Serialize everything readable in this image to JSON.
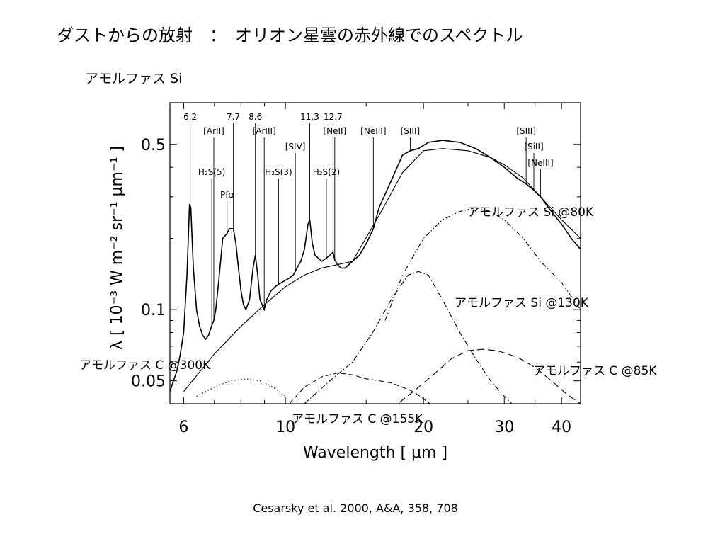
{
  "slide": {
    "title": "ダストからの放射　：　オリオン星雲の赤外線でのスペクトル",
    "subtitle": "アモルファス Si",
    "citation": "Cesarsky et al. 2000, A&A, 358, 708"
  },
  "chart_data": {
    "type": "line",
    "xlabel": "Wavelength [ μm ]",
    "ylabel": "λ [ 10⁻³ W m⁻² sr⁻¹ μm⁻¹ ]",
    "xscale": "log",
    "yscale": "log",
    "xlim": [
      5.6,
      44
    ],
    "ylim": [
      0.04,
      0.75
    ],
    "x_ticks": [
      {
        "value": 6,
        "label": "6"
      },
      {
        "value": 10,
        "label": "10"
      },
      {
        "value": 20,
        "label": "20"
      },
      {
        "value": 30,
        "label": "30"
      },
      {
        "value": 40,
        "label": "40"
      }
    ],
    "y_ticks": [
      {
        "value": 0.05,
        "label": "0.05"
      },
      {
        "value": 0.1,
        "label": "0.1"
      },
      {
        "value": 0.5,
        "label": "0.5"
      }
    ],
    "grid": false,
    "line_labels": [
      {
        "text": "6.2",
        "x": 6.2,
        "row": 0
      },
      {
        "text": "7.7",
        "x": 7.7,
        "row": 0
      },
      {
        "text": "8.6",
        "x": 8.6,
        "row": 0
      },
      {
        "text": "11.3",
        "x": 11.3,
        "row": 0
      },
      {
        "text": "12.7",
        "x": 12.7,
        "row": 0
      },
      {
        "text": "[ArII]",
        "x": 6.98,
        "row": 1
      },
      {
        "text": "[ArIII]",
        "x": 8.99,
        "row": 1
      },
      {
        "text": "[NeII]",
        "x": 12.81,
        "row": 1
      },
      {
        "text": "[NeIII]",
        "x": 15.55,
        "row": 1
      },
      {
        "text": "[SIII]",
        "x": 18.71,
        "row": 1
      },
      {
        "text": "[SIII]",
        "x": 33.48,
        "row": 1
      },
      {
        "text": "[SIV]",
        "x": 10.51,
        "row": 2
      },
      {
        "text": "[SiII]",
        "x": 34.8,
        "row": 2
      },
      {
        "text": "[NeIII]",
        "x": 36.0,
        "row": 3
      },
      {
        "text": "H₂S(5)",
        "x": 6.91,
        "row": 4
      },
      {
        "text": "H₂S(3)",
        "x": 9.66,
        "row": 4
      },
      {
        "text": "H₂S(2)",
        "x": 12.28,
        "row": 4
      },
      {
        "text": "Pfα",
        "x": 7.46,
        "row": 5
      }
    ],
    "series": [
      {
        "style": "observed",
        "x": [
          5.6,
          5.7,
          5.8,
          5.9,
          6.0,
          6.1,
          6.18,
          6.22,
          6.3,
          6.4,
          6.5,
          6.6,
          6.7,
          6.8,
          6.9,
          6.98,
          7.05,
          7.15,
          7.3,
          7.46,
          7.55,
          7.7,
          7.8,
          7.9,
          8.0,
          8.1,
          8.2,
          8.35,
          8.5,
          8.6,
          8.7,
          8.8,
          8.99,
          9.1,
          9.3,
          9.5,
          9.66,
          9.8,
          10.0,
          10.2,
          10.4,
          10.51,
          10.6,
          10.8,
          11.0,
          11.2,
          11.3,
          11.45,
          11.6,
          11.8,
          12.0,
          12.28,
          12.5,
          12.7,
          12.81,
          13.0,
          13.2,
          13.5,
          14.0,
          14.5,
          15.0,
          15.55,
          16.0,
          17.0,
          18.0,
          18.71,
          19.5,
          20.5,
          22.0,
          24.0,
          26.0,
          28.0,
          30.0,
          32.0,
          33.48,
          34.8,
          36.0,
          38.0,
          40.0,
          42.0,
          44.0
        ],
        "values": [
          0.045,
          0.05,
          0.055,
          0.065,
          0.08,
          0.14,
          0.28,
          0.27,
          0.15,
          0.1,
          0.085,
          0.078,
          0.075,
          0.078,
          0.085,
          0.09,
          0.1,
          0.13,
          0.2,
          0.21,
          0.22,
          0.22,
          0.19,
          0.15,
          0.12,
          0.105,
          0.1,
          0.11,
          0.15,
          0.17,
          0.14,
          0.11,
          0.1,
          0.11,
          0.12,
          0.125,
          0.128,
          0.13,
          0.133,
          0.136,
          0.14,
          0.145,
          0.15,
          0.16,
          0.18,
          0.23,
          0.24,
          0.19,
          0.17,
          0.165,
          0.16,
          0.165,
          0.17,
          0.175,
          0.162,
          0.155,
          0.15,
          0.15,
          0.16,
          0.17,
          0.19,
          0.22,
          0.27,
          0.35,
          0.45,
          0.47,
          0.48,
          0.51,
          0.52,
          0.51,
          0.48,
          0.44,
          0.4,
          0.36,
          0.34,
          0.32,
          0.3,
          0.26,
          0.23,
          0.2,
          0.18
        ]
      },
      {
        "style": "total-fit",
        "x": [
          6.0,
          7.0,
          8.0,
          9.0,
          10.0,
          11.0,
          12.0,
          13.0,
          14.0,
          16.0,
          18.0,
          20.0,
          22.0,
          25.0,
          28.0,
          30.0,
          33.0,
          36.0,
          40.0,
          44.0
        ],
        "values": [
          0.045,
          0.065,
          0.085,
          0.105,
          0.125,
          0.14,
          0.15,
          0.155,
          0.16,
          0.25,
          0.38,
          0.47,
          0.48,
          0.47,
          0.44,
          0.41,
          0.36,
          0.3,
          0.24,
          0.2
        ]
      },
      {
        "name": "アモルファス Si @80K",
        "style": "dash-dot-dot",
        "x": [
          16.5,
          18.0,
          20.0,
          22.0,
          24.0,
          26.0,
          28.0,
          30.0,
          33.0,
          36.0,
          40.0,
          44.0
        ],
        "values": [
          0.09,
          0.14,
          0.2,
          0.24,
          0.26,
          0.27,
          0.26,
          0.24,
          0.2,
          0.16,
          0.13,
          0.1
        ]
      },
      {
        "name": "アモルファス Si @130K",
        "style": "dash-dot",
        "x": [
          11.0,
          12.5,
          14.0,
          15.5,
          17.0,
          18.5,
          19.5,
          20.5,
          22.0,
          24.0,
          26.0,
          28.0,
          30.0,
          32.0
        ],
        "values": [
          0.04,
          0.05,
          0.06,
          0.08,
          0.11,
          0.14,
          0.145,
          0.14,
          0.11,
          0.08,
          0.062,
          0.05,
          0.043,
          0.038
        ]
      },
      {
        "name": "アモルファス C @85K",
        "style": "long-dash",
        "x": [
          17.0,
          19.0,
          21.0,
          23.0,
          25.0,
          27.0,
          29.0,
          32.0,
          35.0,
          38.0,
          41.0,
          44.0
        ],
        "values": [
          0.038,
          0.045,
          0.053,
          0.062,
          0.067,
          0.068,
          0.067,
          0.063,
          0.057,
          0.05,
          0.044,
          0.04
        ]
      },
      {
        "name": "アモルファス C @155K",
        "style": "dash",
        "x": [
          10.2,
          11.0,
          12.0,
          13.0,
          14.0,
          15.0,
          16.0,
          17.0,
          18.0,
          19.0,
          20.0,
          21.0
        ],
        "values": [
          0.04,
          0.047,
          0.052,
          0.054,
          0.053,
          0.051,
          0.05,
          0.049,
          0.047,
          0.045,
          0.042,
          0.039
        ]
      },
      {
        "name": "アモルファス C @300K",
        "style": "dotted",
        "x": [
          6.4,
          7.0,
          7.6,
          8.2,
          8.8,
          9.4,
          10.0
        ],
        "values": [
          0.043,
          0.047,
          0.05,
          0.051,
          0.05,
          0.047,
          0.043
        ]
      }
    ],
    "annotations": [
      {
        "text": "アモルファス Si @80K",
        "series": 2
      },
      {
        "text": "アモルファス Si @130K",
        "series": 3
      },
      {
        "text": "アモルファス C @85K",
        "series": 4
      },
      {
        "text": "アモルファス C @155K",
        "series": 5
      },
      {
        "text": "アモルファス C @300K",
        "series": 6
      }
    ]
  }
}
